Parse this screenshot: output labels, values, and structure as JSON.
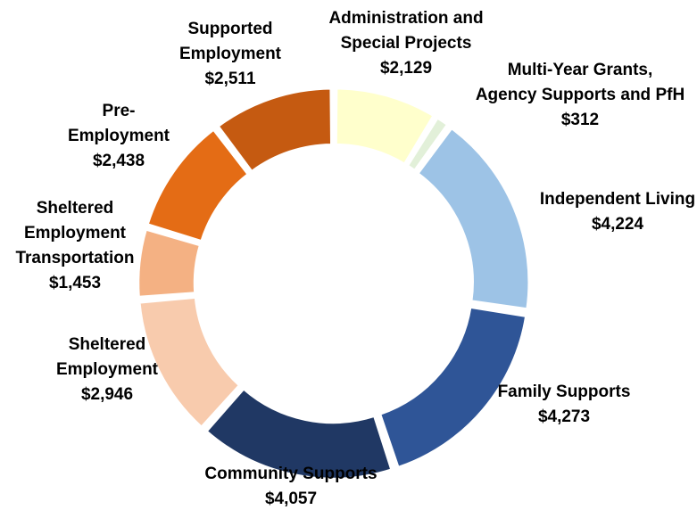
{
  "chart_data": {
    "type": "pie",
    "subtype": "donut",
    "title": "",
    "slices": [
      {
        "label_lines": [
          "Administration and",
          "Special Projects"
        ],
        "value_text": "$2,129",
        "value": 2129,
        "color": "#FFFFCC"
      },
      {
        "label_lines": [
          "Multi-Year Grants,",
          "Agency Supports and PfH"
        ],
        "value_text": "$312",
        "value": 312,
        "color": "#E2F0D9"
      },
      {
        "label_lines": [
          "Independent Living"
        ],
        "value_text": "$4,224",
        "value": 4224,
        "color": "#9DC3E6"
      },
      {
        "label_lines": [
          "Family Supports"
        ],
        "value_text": "$4,273",
        "value": 4273,
        "color": "#2F5597"
      },
      {
        "label_lines": [
          "Community Supports"
        ],
        "value_text": "$4,057",
        "value": 4057,
        "color": "#203864"
      },
      {
        "label_lines": [
          "Sheltered",
          "Employment"
        ],
        "value_text": "$2,946",
        "value": 2946,
        "color": "#F8CBAD"
      },
      {
        "label_lines": [
          "Sheltered",
          "Employment",
          "Transportation"
        ],
        "value_text": "$1,453",
        "value": 1453,
        "color": "#F4B183"
      },
      {
        "label_lines": [
          "Pre-",
          "Employment"
        ],
        "value_text": "$2,438",
        "value": 2438,
        "color": "#E46C15"
      },
      {
        "label_lines": [
          "Supported",
          "Employment"
        ],
        "value_text": "$2,511",
        "value": 2511,
        "color": "#C55A11"
      }
    ],
    "legend": "none (labels placed around ring)"
  }
}
